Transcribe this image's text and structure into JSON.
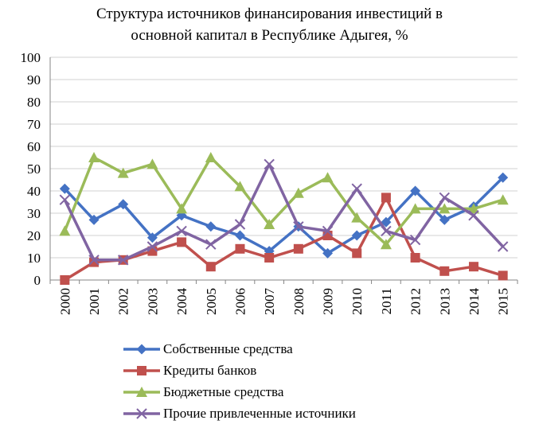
{
  "chart_data": {
    "type": "line",
    "title_lines": [
      "Структура источников финансирования инвестиций в",
      "основной капитал в Республике Адыгея, %"
    ],
    "categories": [
      "2000",
      "2001",
      "2002",
      "2003",
      "2004",
      "2005",
      "2006",
      "2007",
      "2008",
      "2009",
      "2010",
      "2011",
      "2012",
      "2013",
      "2014",
      "2015"
    ],
    "y_ticks": [
      "0",
      "10",
      "20",
      "30",
      "40",
      "50",
      "60",
      "70",
      "80",
      "90",
      "100"
    ],
    "ylim": [
      0,
      100
    ],
    "grid": true,
    "legend_position": "bottom",
    "series": [
      {
        "name": "Собственные средства",
        "color": "#4472C4",
        "marker": "diamond",
        "values": [
          41,
          27,
          34,
          19,
          29,
          24,
          20,
          13,
          24,
          12,
          20,
          26,
          40,
          27,
          33,
          46
        ]
      },
      {
        "name": "Кредиты банков",
        "color": "#C0504D",
        "marker": "square",
        "values": [
          0,
          8,
          9,
          13,
          17,
          6,
          14,
          10,
          14,
          20,
          12,
          37,
          10,
          4,
          6,
          2
        ]
      },
      {
        "name": "Бюджетные средства",
        "color": "#9BBB59",
        "marker": "triangle",
        "values": [
          22,
          55,
          48,
          52,
          32,
          55,
          42,
          25,
          39,
          46,
          28,
          16,
          32,
          32,
          32,
          36
        ]
      },
      {
        "name": "Прочие привлеченные источники",
        "color": "#8064A2",
        "marker": "x",
        "values": [
          36,
          9,
          9,
          15,
          22,
          16,
          25,
          52,
          24,
          22,
          41,
          22,
          18,
          37,
          29,
          15
        ]
      }
    ]
  }
}
